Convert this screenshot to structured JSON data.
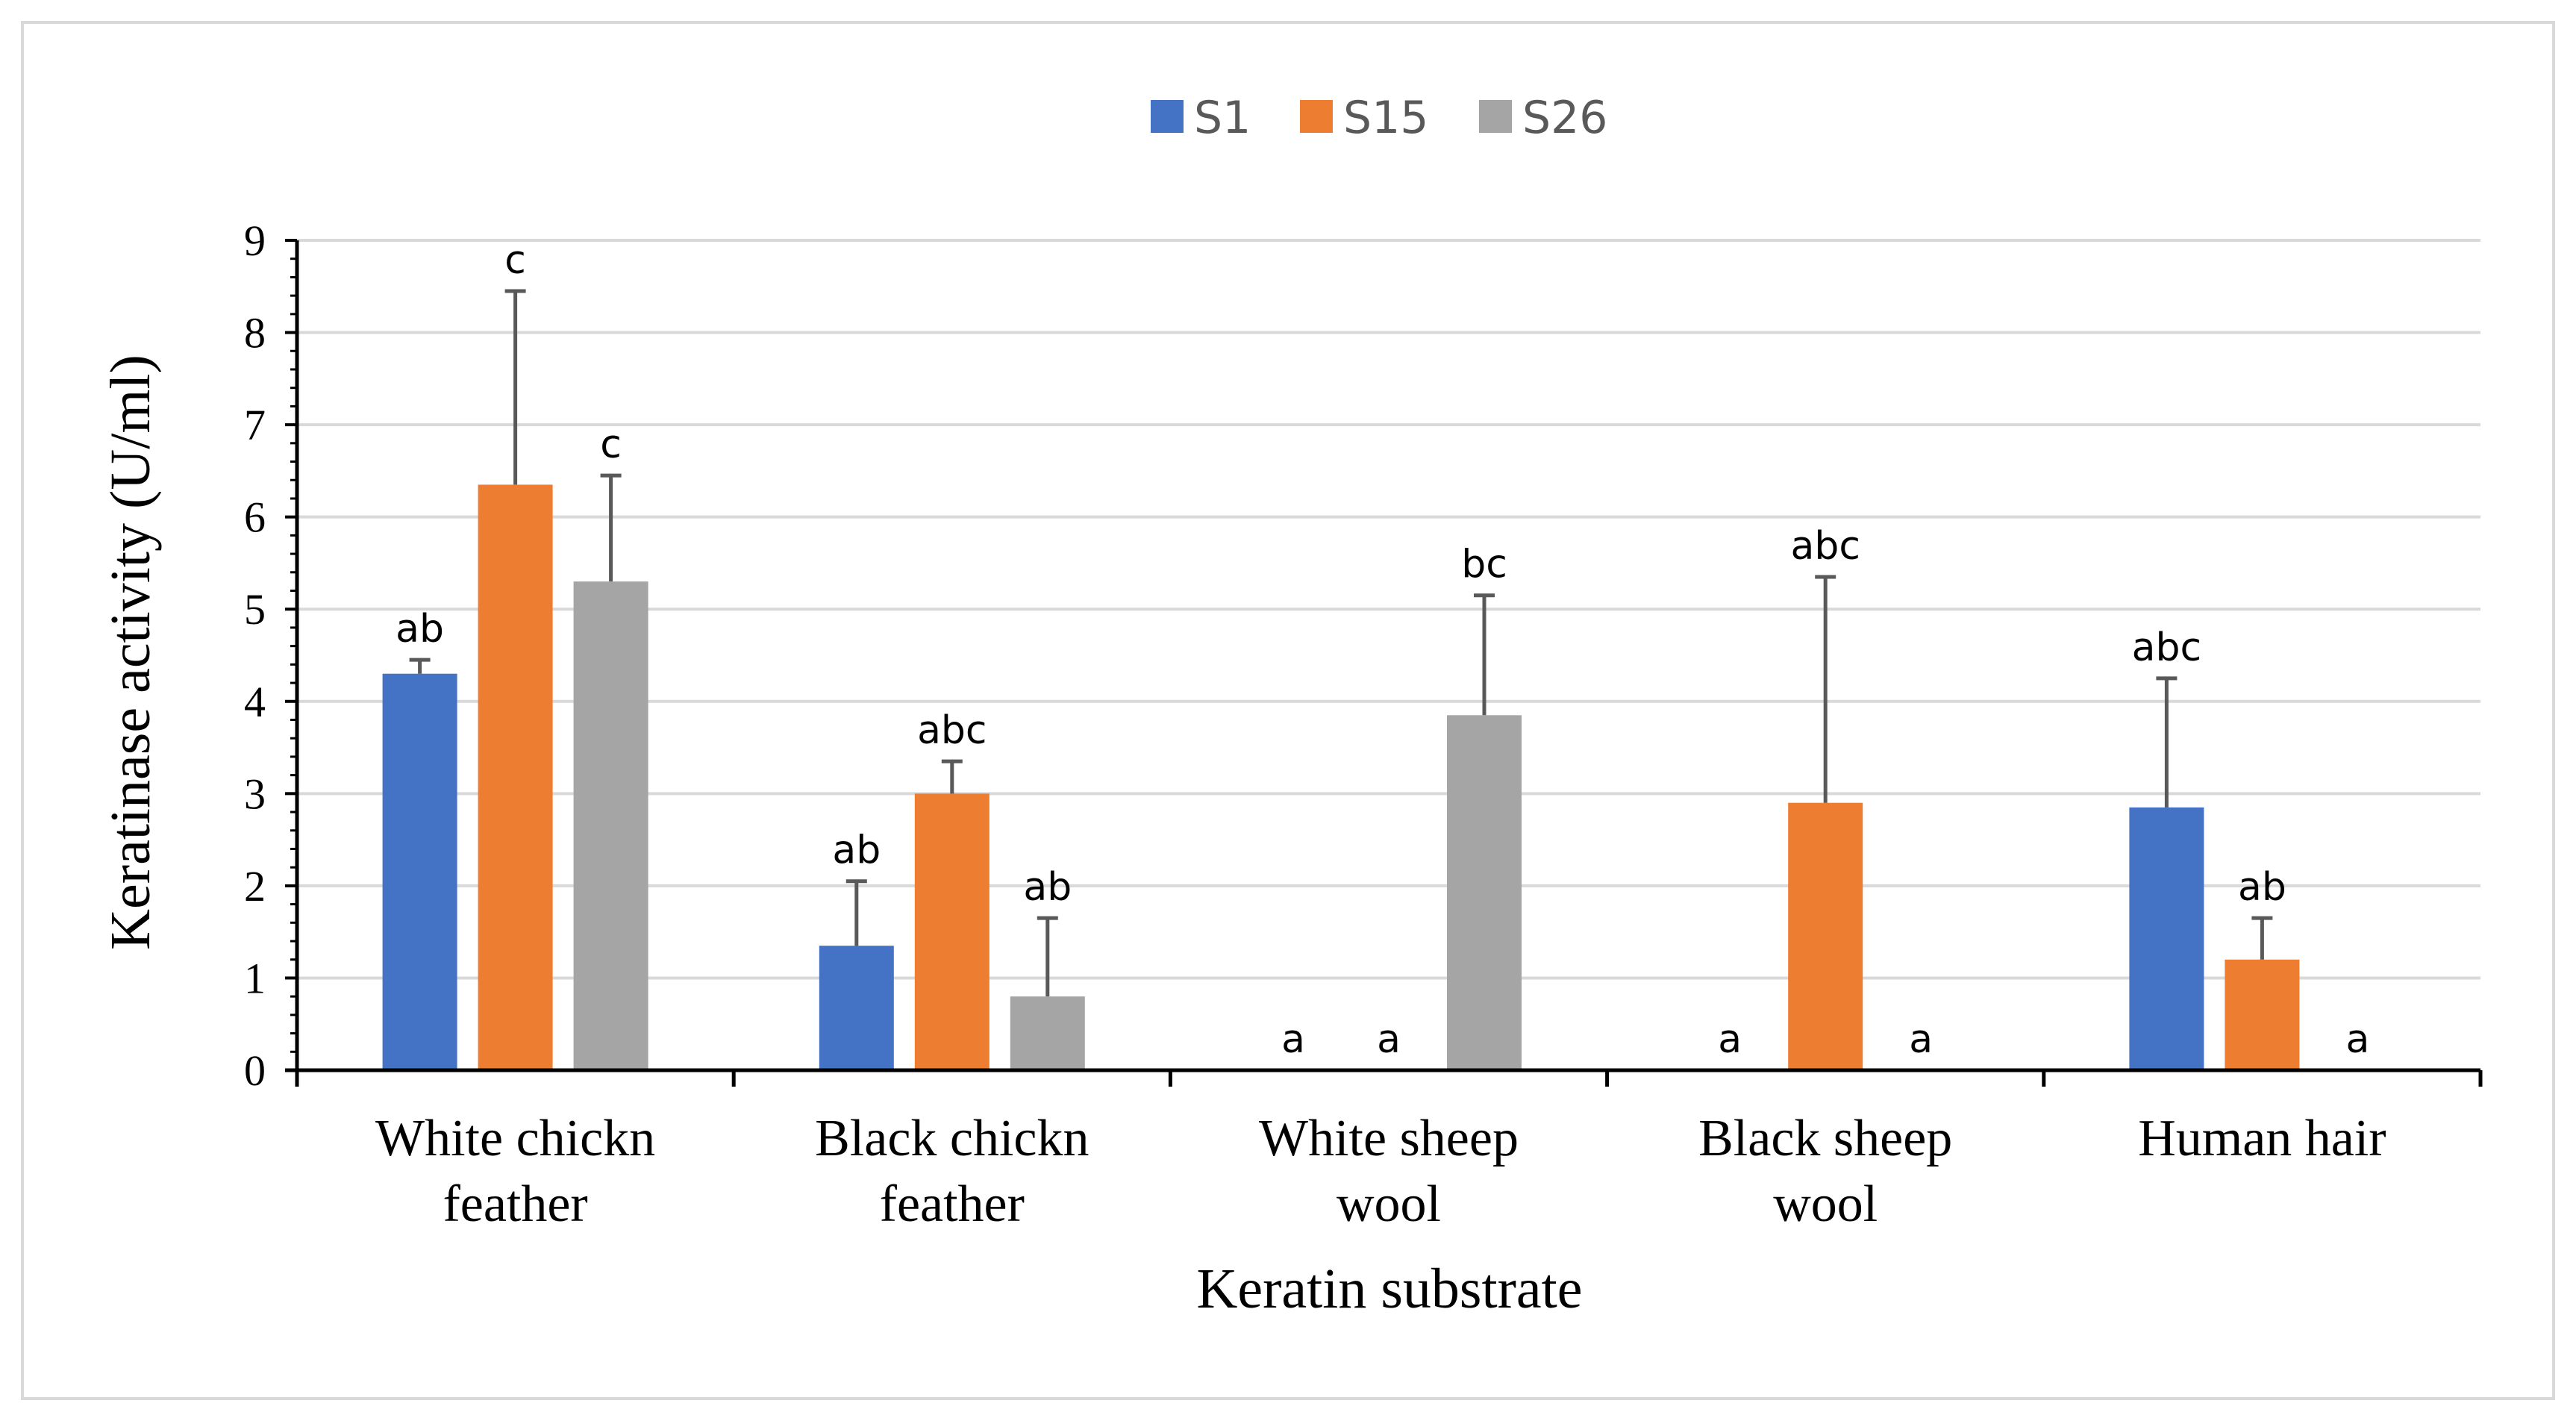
{
  "chart_data": {
    "type": "bar",
    "title": "",
    "xlabel": "Keratin substrate",
    "ylabel": "Keratinase activity (U/ml)",
    "ylim": [
      0,
      9
    ],
    "yticks": [
      "0",
      "1",
      "2",
      "3",
      "4",
      "5",
      "6",
      "7",
      "8",
      "9"
    ],
    "grid": true,
    "legend_position": "top-center",
    "categories": [
      [
        "White chickn",
        "feather"
      ],
      [
        "Black chickn",
        "feather"
      ],
      [
        "White sheep",
        "wool"
      ],
      [
        "Black sheep",
        "wool"
      ],
      [
        "Human hair"
      ]
    ],
    "series": [
      {
        "name": "S1",
        "color": "#4472c4",
        "values": [
          4.3,
          1.35,
          0,
          0,
          2.85
        ],
        "error_upper": [
          4.45,
          2.05,
          0,
          0,
          4.25
        ],
        "labels": [
          "ab",
          "ab",
          "a",
          "a",
          "abc"
        ]
      },
      {
        "name": "S15",
        "color": "#ed7d31",
        "values": [
          6.35,
          3.0,
          0,
          2.9,
          1.2
        ],
        "error_upper": [
          8.45,
          3.35,
          0,
          5.35,
          1.65
        ],
        "labels": [
          "c",
          "abc",
          "a",
          "abc",
          "ab"
        ]
      },
      {
        "name": "S26",
        "color": "#a5a5a5",
        "values": [
          5.3,
          0.8,
          3.85,
          0,
          0
        ],
        "error_upper": [
          6.45,
          1.65,
          5.15,
          0,
          0
        ],
        "labels": [
          "c",
          "ab",
          "bc",
          "a",
          "a"
        ]
      }
    ]
  }
}
